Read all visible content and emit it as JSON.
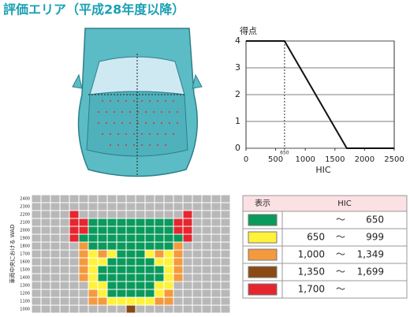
{
  "title": "評価エリア（平成28年度以降）",
  "chart_data": {
    "type": "line",
    "ylabel": "得点",
    "xlabel": "HIC",
    "x": [
      0,
      650,
      1700,
      2500
    ],
    "series": [
      {
        "color": "#111111",
        "values": [
          4,
          4,
          0,
          0
        ]
      }
    ],
    "xlim": [
      0,
      2500
    ],
    "ylim": [
      0,
      4
    ],
    "xticks": [
      0,
      500,
      1000,
      1500,
      2000,
      2500
    ],
    "yticks": [
      0,
      1,
      2,
      3,
      4
    ],
    "grid": true,
    "annotation": {
      "x": 650,
      "label": "650"
    }
  },
  "heatmap": {
    "ylabel": "車両中央における WAD",
    "row_labels": [
      2400,
      2300,
      2200,
      2100,
      2000,
      1900,
      1800,
      1700,
      1600,
      1500,
      1400,
      1300,
      1200,
      1100,
      1000
    ],
    "cells": [
      [
        null,
        null,
        null,
        null,
        null,
        null,
        null,
        null,
        null,
        null,
        null,
        null,
        null,
        null,
        null,
        null,
        null,
        null,
        null,
        null,
        null
      ],
      [
        null,
        null,
        null,
        null,
        null,
        null,
        null,
        null,
        null,
        null,
        null,
        null,
        null,
        null,
        null,
        null,
        null,
        null,
        null,
        null,
        null
      ],
      [
        null,
        null,
        null,
        null,
        4,
        null,
        null,
        null,
        null,
        null,
        null,
        null,
        null,
        null,
        null,
        null,
        4,
        null,
        null,
        null,
        null
      ],
      [
        null,
        null,
        null,
        null,
        4,
        4,
        0,
        0,
        0,
        0,
        0,
        0,
        0,
        0,
        0,
        4,
        4,
        null,
        null,
        null,
        null
      ],
      [
        null,
        null,
        null,
        null,
        4,
        4,
        0,
        0,
        0,
        0,
        0,
        0,
        0,
        0,
        0,
        4,
        4,
        null,
        null,
        null,
        null
      ],
      [
        null,
        null,
        null,
        null,
        4,
        0,
        0,
        0,
        0,
        0,
        0,
        0,
        0,
        0,
        0,
        0,
        4,
        null,
        null,
        null,
        null
      ],
      [
        null,
        null,
        null,
        null,
        null,
        2,
        0,
        0,
        0,
        0,
        0,
        0,
        0,
        0,
        0,
        2,
        null,
        null,
        null,
        null,
        null
      ],
      [
        null,
        null,
        null,
        null,
        null,
        2,
        1,
        2,
        1,
        0,
        0,
        0,
        1,
        2,
        1,
        2,
        null,
        null,
        null,
        null,
        null
      ],
      [
        null,
        null,
        null,
        null,
        null,
        2,
        1,
        1,
        0,
        0,
        0,
        0,
        0,
        1,
        1,
        2,
        null,
        null,
        null,
        null,
        null
      ],
      [
        null,
        null,
        null,
        null,
        null,
        2,
        1,
        0,
        0,
        0,
        0,
        0,
        0,
        0,
        1,
        2,
        null,
        null,
        null,
        null,
        null
      ],
      [
        null,
        null,
        null,
        null,
        null,
        2,
        1,
        0,
        0,
        0,
        0,
        0,
        0,
        0,
        1,
        2,
        null,
        null,
        null,
        null,
        null
      ],
      [
        null,
        null,
        null,
        null,
        null,
        null,
        1,
        1,
        0,
        0,
        0,
        0,
        0,
        1,
        1,
        null,
        null,
        null,
        null,
        null,
        null
      ],
      [
        null,
        null,
        null,
        null,
        null,
        null,
        2,
        1,
        0,
        0,
        0,
        0,
        0,
        1,
        2,
        null,
        null,
        null,
        null,
        null,
        null
      ],
      [
        null,
        null,
        null,
        null,
        null,
        null,
        2,
        2,
        1,
        1,
        1,
        1,
        1,
        2,
        2,
        null,
        null,
        null,
        null,
        null,
        null
      ],
      [
        null,
        null,
        null,
        null,
        null,
        null,
        null,
        null,
        null,
        null,
        3,
        null,
        null,
        null,
        null,
        null,
        null,
        null,
        null,
        null,
        null
      ]
    ]
  },
  "table": {
    "header": [
      "表示",
      "HIC"
    ],
    "rows": [
      {
        "color": "#0a9a5c",
        "from": null,
        "sep": "～",
        "to": "650"
      },
      {
        "color": "#fff23a",
        "from": "650",
        "sep": "～",
        "to": "999"
      },
      {
        "color": "#f39a3e",
        "from": "1,000",
        "sep": "～",
        "to": "1,349"
      },
      {
        "color": "#8a4a16",
        "from": "1,350",
        "sep": "～",
        "to": "1,699"
      },
      {
        "color": "#e5262e",
        "from": "1,700",
        "sep": "～",
        "to": null
      }
    ]
  }
}
